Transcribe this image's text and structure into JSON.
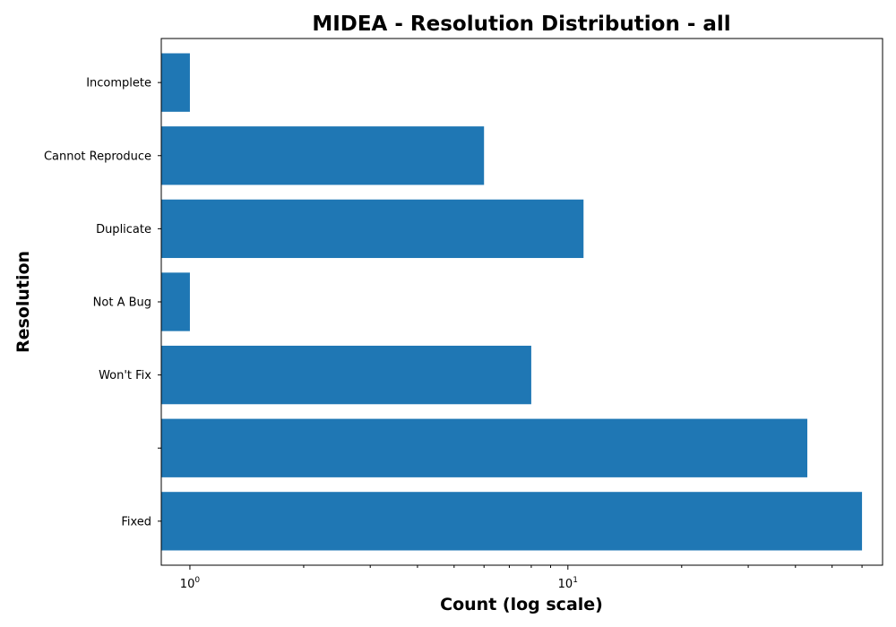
{
  "chart_data": {
    "type": "bar",
    "orientation": "horizontal",
    "title": "MIDEA - Resolution Distribution - all",
    "xlabel": "Count (log scale)",
    "ylabel": "Resolution",
    "x_scale": "log",
    "xlim": [
      0.84,
      68
    ],
    "x_ticks": [
      {
        "value": 1,
        "base": "10",
        "exp": "0"
      },
      {
        "value": 10,
        "base": "10",
        "exp": "1"
      }
    ],
    "x_minor_ticks": [
      2,
      3,
      4,
      5,
      6,
      7,
      8,
      9,
      20,
      30,
      40,
      50,
      60
    ],
    "categories": [
      "Fixed",
      "",
      "Won't Fix",
      "Not A Bug",
      "Duplicate",
      "Cannot Reproduce",
      "Incomplete"
    ],
    "values": [
      60,
      43,
      8,
      1,
      11,
      6,
      1
    ],
    "bar_color": "#1f77b4",
    "grid": false
  }
}
